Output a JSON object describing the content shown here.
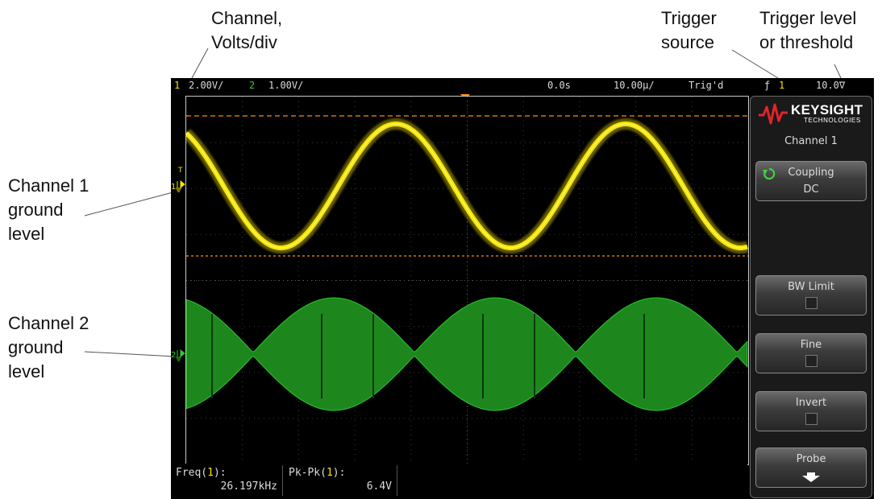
{
  "callouts": {
    "channel_volts": [
      "Channel,",
      "Volts/div"
    ],
    "trigger_source": [
      "Trigger",
      "source"
    ],
    "trigger_level": [
      "Trigger level",
      "or threshold"
    ],
    "ch1_ground": [
      "Channel 1",
      "ground",
      "level"
    ],
    "ch2_ground": [
      "Channel 2",
      "ground",
      "level"
    ]
  },
  "status": {
    "ch1_num": "1",
    "ch1_scale": "2.00V/",
    "ch2_num": "2",
    "ch2_scale": "1.00V/",
    "time_delay": "0.0s",
    "time_base": "10.00µ/",
    "trig_state": "Trig'd",
    "trig_slope": "ƒ",
    "trig_source": "1",
    "trig_level": "10.0∇"
  },
  "markers": {
    "ch1_trigger_label": "T",
    "ch1_label": "1",
    "ch2_label": "2"
  },
  "measurements": [
    {
      "label_pre": "Freq(",
      "label_ch": "1",
      "label_post": "):",
      "value": "26.197kHz"
    },
    {
      "label_pre": "Pk-Pk(",
      "label_ch": "1",
      "label_post": "):",
      "value": "6.4V"
    }
  ],
  "panel": {
    "brand": "KEYSIGHT",
    "brand_sub": "TECHNOLOGIES",
    "title": "Channel 1",
    "coupling_label": "Coupling",
    "coupling_value": "DC",
    "bw_limit_label": "BW Limit",
    "fine_label": "Fine",
    "invert_label": "Invert",
    "probe_label": "Probe"
  },
  "colors": {
    "ch1": "#f2e600",
    "ch2": "#2ecc2e",
    "trigger": "#ff8c00",
    "background": "#000000"
  },
  "icons": {
    "coupling": "cycle-arrow-icon",
    "probe": "down-arrow-icon",
    "ground": "ground-icon",
    "logo": "keysight-wave-logo"
  }
}
